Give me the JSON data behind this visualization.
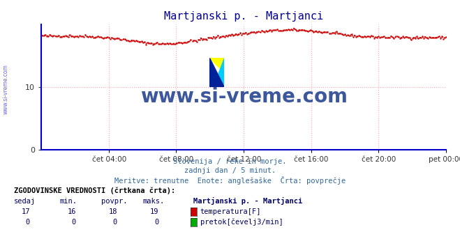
{
  "title": "Martjanski p. - Martjanci",
  "title_color": "#000099",
  "bg_color": "#ffffff",
  "plot_bg_color": "#ffffff",
  "grid_color": "#ffaaaa",
  "axis_color": "#0000cc",
  "watermark_text": "www.si-vreme.com",
  "watermark_color": "#1a3a8a",
  "ylabel_left": "",
  "ylim": [
    0,
    20
  ],
  "yticks": [
    0,
    10
  ],
  "xlabel_color": "#555555",
  "subtitle_lines": [
    "Slovenija / reke in morje.",
    "zadnji dan / 5 minut.",
    "Meritve: trenutne  Enote: anglešaške  Črta: povprečje"
  ],
  "subtitle_color": "#336699",
  "table_header": "ZGODOVINSKE VREDNOSTI (črtkana črta):",
  "table_cols": [
    "sedaj",
    "min.",
    "povpr.",
    "maks.",
    "Martjanski p. - Martjanci"
  ],
  "table_data": [
    [
      17,
      16,
      18,
      19,
      "temperatura[F]",
      "#cc0000"
    ],
    [
      0,
      0,
      0,
      0,
      "pretok[čevelj3/min]",
      "#00aa00"
    ]
  ],
  "xticklabels": [
    "čet 04:00",
    "čet 08:00",
    "čet 12:00",
    "čet 16:00",
    "čet 20:00",
    "pet 00:00"
  ],
  "xtick_positions_norm": [
    0.167,
    0.333,
    0.5,
    0.667,
    0.833,
    1.0
  ],
  "temp_avg": 18,
  "temp_min": 16,
  "temp_max": 19,
  "line_color": "#cc0000",
  "line_width": 1.2,
  "n_points": 288,
  "side_watermark": "www.si-vreme.com",
  "side_watermark_color": "#0000cc"
}
